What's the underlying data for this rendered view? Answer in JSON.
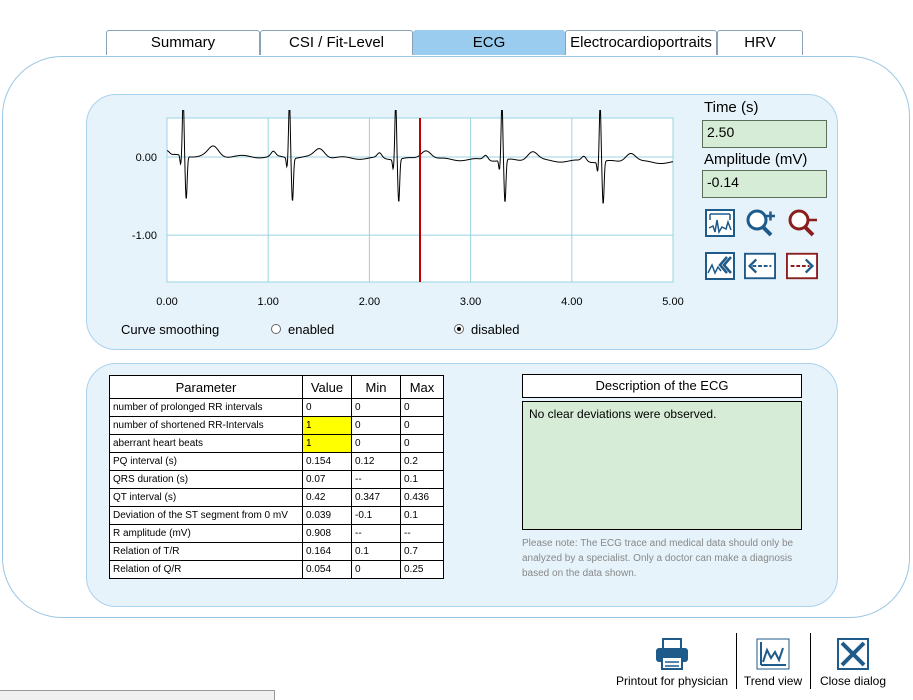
{
  "tabs": [
    {
      "label": "Summary",
      "active": false
    },
    {
      "label": "CSI / Fit-Level",
      "active": false
    },
    {
      "label": "ECG",
      "active": true
    },
    {
      "label": "Electrocardioportraits",
      "active": false
    },
    {
      "label": "HRV",
      "active": false
    }
  ],
  "ecg": {
    "y_ticks": [
      "0.00",
      "-1.00"
    ],
    "x_ticks": [
      "0.00",
      "1.00",
      "2.00",
      "3.00",
      "4.00",
      "5.00"
    ],
    "x_range": [
      0,
      5
    ],
    "y_range": [
      -1.6,
      0.5
    ],
    "cursor_time": 2.5,
    "trace_color": "#000000",
    "cursor_color": "#c00000",
    "grid_color": "#99d4e0"
  },
  "readout": {
    "time_label": "Time (s)",
    "time_value": "2.50",
    "amplitude_label": "Amplitude (mV)",
    "amplitude_value": "-0.14"
  },
  "smoothing": {
    "label": "Curve smoothing",
    "enabled_label": "enabled",
    "disabled_label": "disabled",
    "selected": "disabled"
  },
  "tools": {
    "icons": [
      "fit-view-icon",
      "zoom-in-icon",
      "zoom-out-icon",
      "reset-view-icon",
      "scroll-left-icon",
      "scroll-right-icon"
    ]
  },
  "table": {
    "headers": [
      "Parameter",
      "Value",
      "Min",
      "Max"
    ],
    "rows": [
      {
        "name": "number of prolonged RR intervals",
        "value": "0",
        "min": "0",
        "max": "0",
        "highlight": false
      },
      {
        "name": "number of shortened RR-Intervals",
        "value": "1",
        "min": "0",
        "max": "0",
        "highlight": true
      },
      {
        "name": "aberrant heart beats",
        "value": "1",
        "min": "0",
        "max": "0",
        "highlight": true
      },
      {
        "name": "PQ interval (s)",
        "value": "0.154",
        "min": "0.12",
        "max": "0.2",
        "highlight": false
      },
      {
        "name": "QRS duration (s)",
        "value": "0.07",
        "min": "--",
        "max": "0.1",
        "highlight": false
      },
      {
        "name": "QT interval (s)",
        "value": "0.42",
        "min": "0.347",
        "max": "0.436",
        "highlight": false
      },
      {
        "name": "Deviation of the ST segment from 0 mV",
        "value": "0.039",
        "min": "-0.1",
        "max": "0.1",
        "highlight": false
      },
      {
        "name": "R amplitude (mV)",
        "value": "0.908",
        "min": "--",
        "max": "--",
        "highlight": false
      },
      {
        "name": "Relation of T/R",
        "value": "0.164",
        "min": "0.1",
        "max": "0.7",
        "highlight": false
      },
      {
        "name": "Relation of Q/R",
        "value": "0.054",
        "min": "0",
        "max": "0.25",
        "highlight": false
      }
    ]
  },
  "description": {
    "title": "Description of the ECG",
    "text": "No clear deviations were observed.",
    "note": "Please note: The ECG trace and medical data should only be analyzed by a specialist. Only a doctor can make a diagnosis based on the data shown."
  },
  "actions": {
    "printout_label": "Printout for physician",
    "trend_label": "Trend view",
    "close_label": "Close dialog"
  },
  "colors": {
    "panel_bg": "#e6f3fb",
    "tab_active": "#99ccee",
    "field_bg": "#d6ecd6",
    "highlight": "#ffff00"
  }
}
